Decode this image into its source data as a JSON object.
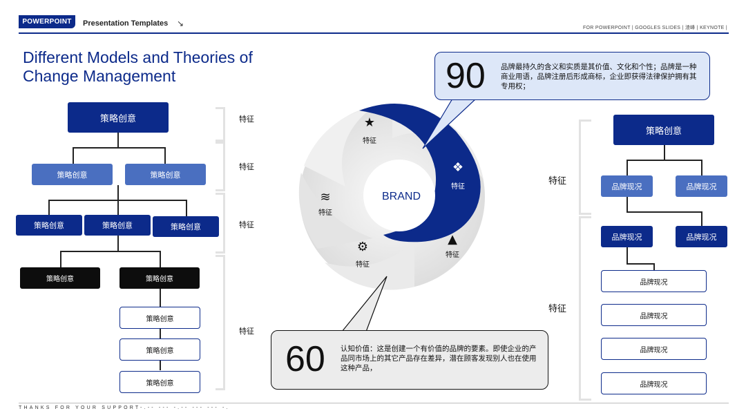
{
  "header": {
    "badge": "POWERPOINT",
    "title": "Presentation Templates",
    "arrow": "↘",
    "right_text": "FOR POWERPOINT | GOOGLES SLIDES | 渣峰 | KEYNOTE |"
  },
  "title": {
    "line1": "Different Models and Theories of",
    "line2": "Change Management"
  },
  "left_tree": {
    "root": "策略创意",
    "level2": [
      "策略创意",
      "策略创意"
    ],
    "level3": [
      "策略创意",
      "策略创意",
      "策略创意"
    ],
    "level4": [
      "策略创意",
      "策略创意"
    ],
    "level5": [
      "策略创意",
      "策略创意",
      "策略创意"
    ]
  },
  "left_features": [
    "特征",
    "特征",
    "特征",
    "特征"
  ],
  "wheel": {
    "center": "BRAND",
    "segments": [
      {
        "icon": "star-icon",
        "glyph": "★",
        "label": "特征"
      },
      {
        "icon": "dropbox-icon",
        "glyph": "❖",
        "label": "特征"
      },
      {
        "icon": "warning-icon",
        "glyph": "▲",
        "label": "特征"
      },
      {
        "icon": "gear-icon",
        "glyph": "⚙",
        "label": "特征"
      },
      {
        "icon": "layers-icon",
        "glyph": "≋",
        "label": "特征"
      }
    ],
    "colors": {
      "accent": "#0c2a8a",
      "light": "#e6e6e6"
    }
  },
  "callout_top": {
    "number": "90",
    "text": "品牌最持久的含义和实质是其价值、文化和个性；品牌是一种商业用语，品牌注册后形成商标，企业即获得法律保护拥有其专用权；"
  },
  "callout_bottom": {
    "number": "60",
    "text": "认知价值：这是创建一个有价值的品牌的要素。即使企业的产品同市场上的其它产品存在差异，潜在顾客发现别人也在使用这种产品，"
  },
  "right_tree": {
    "root": "策略创意",
    "level2": [
      "品牌现况",
      "品牌现况"
    ],
    "level3": [
      "品牌现况",
      "品牌现况"
    ],
    "list": [
      "品牌现况",
      "品牌现况",
      "品牌现况",
      "品牌现况"
    ]
  },
  "right_features": [
    "特征",
    "特征"
  ],
  "footer": {
    "text": "THANKS FOR YOUR SUPPORT-.-- --- -.-- --- --- -."
  }
}
